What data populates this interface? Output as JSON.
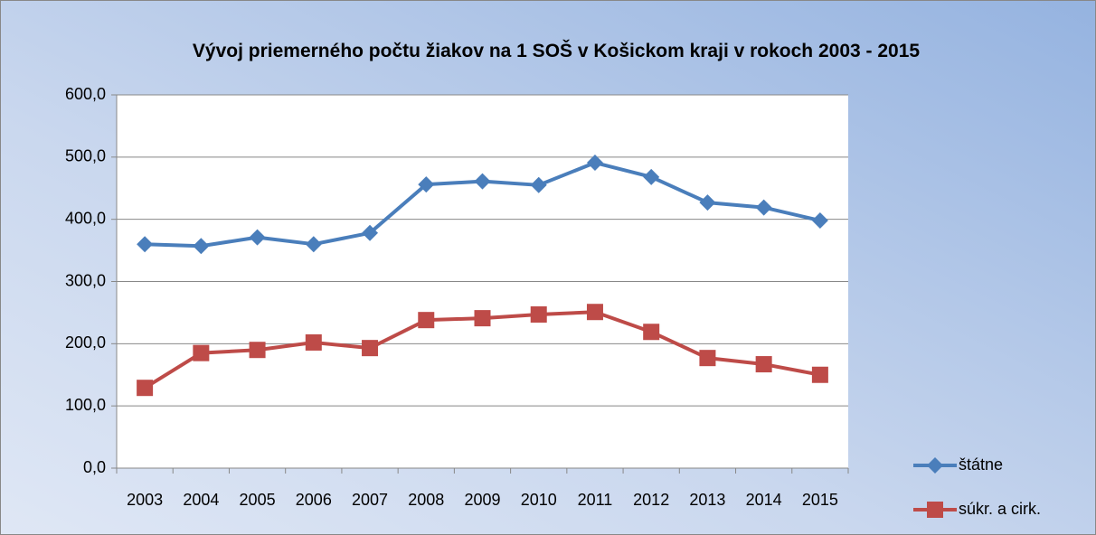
{
  "chart_data": {
    "type": "line",
    "title": "Vývoj priemerného počtu žiakov na 1 SOŠ v Košickom kraji v rokoch 2003 - 2015",
    "categories": [
      "2003",
      "2004",
      "2005",
      "2006",
      "2007",
      "2008",
      "2009",
      "2010",
      "2011",
      "2012",
      "2013",
      "2014",
      "2015"
    ],
    "series": [
      {
        "name": "štátne",
        "color": "#4a7ebb",
        "marker": "diamond",
        "values": [
          360,
          357,
          371,
          360,
          378,
          456,
          461,
          455,
          491,
          468,
          427,
          419,
          398
        ]
      },
      {
        "name": "súkr. a cirk.",
        "color": "#be4b48",
        "marker": "square",
        "values": [
          129,
          185,
          190,
          202,
          193,
          238,
          241,
          247,
          251,
          219,
          177,
          167,
          150
        ]
      }
    ],
    "ylim": [
      0,
      600
    ],
    "yticks": [
      {
        "value": 0,
        "label": "0,0"
      },
      {
        "value": 100,
        "label": "100,0"
      },
      {
        "value": 200,
        "label": "200,0"
      },
      {
        "value": 300,
        "label": "300,0"
      },
      {
        "value": 400,
        "label": "400,0"
      },
      {
        "value": 500,
        "label": "500,0"
      },
      {
        "value": 600,
        "label": "600,0"
      }
    ],
    "grid": true,
    "legend": "right"
  }
}
